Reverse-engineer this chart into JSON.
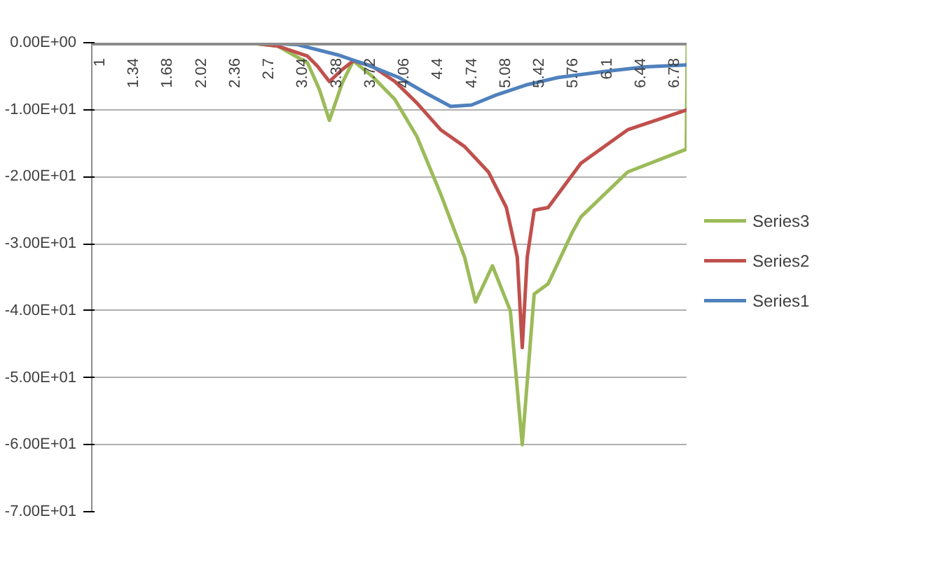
{
  "chart_data": {
    "type": "line",
    "xlim": [
      0.93,
      6.92
    ],
    "ylim": [
      -70,
      0
    ],
    "xticks": [
      1,
      1.34,
      1.68,
      2.02,
      2.36,
      2.7,
      3.04,
      3.38,
      3.72,
      4.06,
      4.4,
      4.74,
      5.08,
      5.42,
      5.76,
      6.1,
      6.44,
      6.78
    ],
    "yticks": [
      {
        "value": 0,
        "label": "0.00E+00"
      },
      {
        "value": -10,
        "label": "-1.00E+01"
      },
      {
        "value": -20,
        "label": "-2.00E+01"
      },
      {
        "value": -30,
        "label": "-3.00E+01"
      },
      {
        "value": -40,
        "label": "-4.00E+01"
      },
      {
        "value": -50,
        "label": "-5.00E+01"
      },
      {
        "value": -60,
        "label": "-6.00E+01"
      },
      {
        "value": -70,
        "label": "-7.00E+01"
      }
    ],
    "grid": "y",
    "legend": "right",
    "line_style": "solid",
    "series": [
      {
        "name": "Series3",
        "color": "#9bbb59",
        "x": [
          1,
          2.5,
          2.8,
          3.1,
          3.22,
          3.32,
          3.45,
          3.56,
          3.75,
          3.98,
          4.2,
          4.44,
          4.68,
          4.79,
          4.96,
          5.14,
          5.26,
          5.38,
          5.52,
          5.76,
          5.85,
          6.32,
          6.91,
          6.92
        ],
        "values": [
          0,
          0,
          -0.5,
          -3,
          -7,
          -11.6,
          -6,
          -2.7,
          -5,
          -8.5,
          -14,
          -22.6,
          -32,
          -38.7,
          -33.3,
          -40,
          -60,
          -37.5,
          -36,
          -28.4,
          -26,
          -19.3,
          -15.9,
          0
        ]
      },
      {
        "name": "Series2",
        "color": "#c0504d",
        "x": [
          1,
          2.5,
          2.8,
          3.1,
          3.2,
          3.32,
          3.45,
          3.56,
          3.75,
          3.98,
          4.2,
          4.44,
          4.68,
          4.92,
          5.1,
          5.21,
          5.26,
          5.31,
          5.38,
          5.52,
          5.85,
          6.32,
          6.92
        ],
        "values": [
          0,
          0,
          -0.5,
          -2,
          -3.5,
          -5.8,
          -4,
          -2.7,
          -3.5,
          -5.8,
          -9,
          -13,
          -15.5,
          -19.3,
          -24.6,
          -32,
          -45.5,
          -32,
          -25,
          -24.6,
          -18,
          -13,
          -10
        ]
      },
      {
        "name": "Series1",
        "color": "#4f81bd",
        "x": [
          1,
          2.6,
          3.0,
          3.4,
          3.7,
          4.02,
          4.3,
          4.54,
          4.75,
          5.0,
          5.3,
          5.62,
          6.08,
          6.5,
          6.92
        ],
        "values": [
          0,
          0,
          -0.3,
          -1.8,
          -3.3,
          -5.2,
          -7.6,
          -9.5,
          -9.3,
          -7.8,
          -6.3,
          -5.2,
          -4.3,
          -3.6,
          -3.3
        ]
      }
    ]
  }
}
